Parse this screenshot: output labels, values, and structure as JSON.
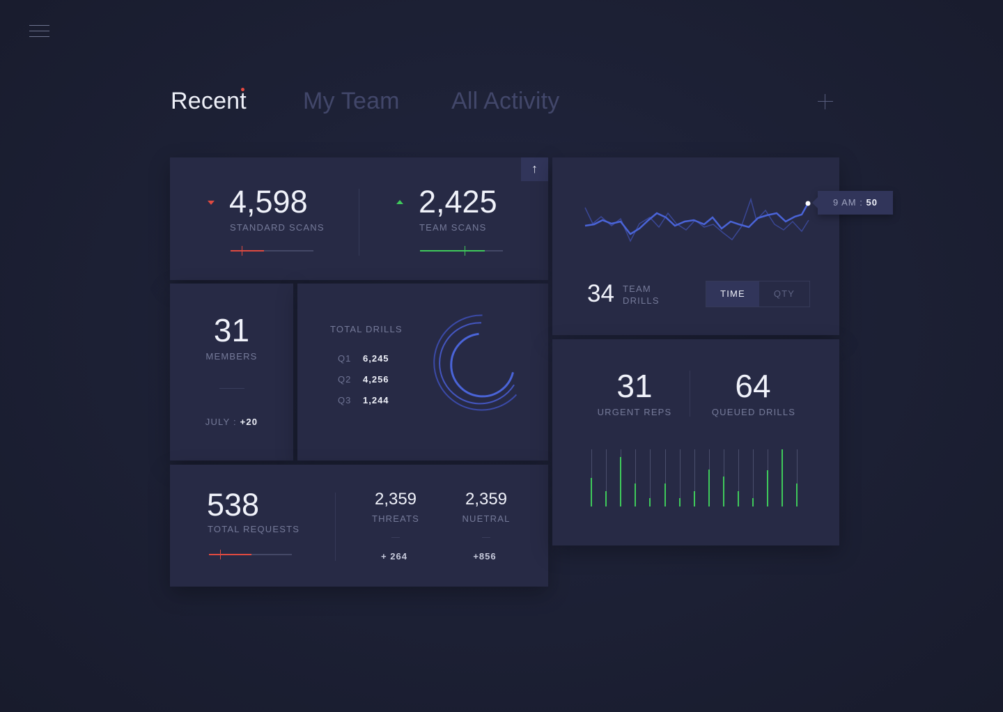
{
  "header": {
    "tabs": [
      {
        "label": "Recent",
        "active": true
      },
      {
        "label": "My Team",
        "active": false
      },
      {
        "label": "All Activity",
        "active": false
      }
    ],
    "menu_icon": "hamburger-icon",
    "add_icon": "plus-icon"
  },
  "scans": {
    "up_button": "↑",
    "standard": {
      "value": "4,598",
      "label": "STANDARD SCANS",
      "trend": "down",
      "progress": 0.4,
      "color": "#e04a40"
    },
    "team": {
      "value": "2,425",
      "label": "TEAM SCANS",
      "trend": "up",
      "progress": 0.78,
      "color": "#3fca5b"
    }
  },
  "members": {
    "value": "31",
    "label": "MEMBERS",
    "month_label": "JULY :",
    "month_value": "+20"
  },
  "drills": {
    "title": "TOTAL DRILLS",
    "rows": [
      {
        "q": "Q1",
        "value": "6,245"
      },
      {
        "q": "Q2",
        "value": "4,256"
      },
      {
        "q": "Q3",
        "value": "1,244"
      }
    ]
  },
  "requests": {
    "value": "538",
    "label": "TOTAL REQUESTS",
    "progress": 0.51,
    "threats": {
      "value": "2,359",
      "label": "THREATS",
      "delta": "+ 264"
    },
    "neutral": {
      "value": "2,359",
      "label": "NUETRAL",
      "delta": "+856"
    }
  },
  "team_drills": {
    "value": "34",
    "label_line1": "TEAM",
    "label_line2": "DRILLS",
    "tooltip_time": "9 AM :",
    "tooltip_value": "50",
    "toggle": [
      "TIME",
      "QTY"
    ],
    "active_toggle": "TIME"
  },
  "reps": {
    "urgent": {
      "value": "31",
      "label": "URGENT REPS"
    },
    "queued": {
      "value": "64",
      "label": "QUEUED DRILLS"
    },
    "bars": [
      0.5,
      0.27,
      0.87,
      0.4,
      0.15,
      0.4,
      0.15,
      0.27,
      0.65,
      0.52,
      0.27,
      0.15,
      0.64,
      1.0,
      0.4
    ]
  },
  "colors": {
    "accent_blue": "#4a64d8",
    "green": "#3fca5b",
    "red": "#e04a40"
  }
}
